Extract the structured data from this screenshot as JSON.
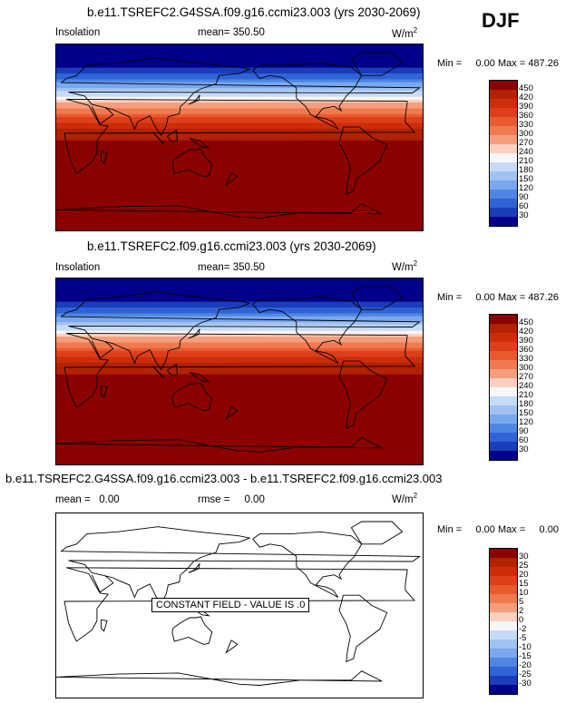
{
  "season": "DJF",
  "panels": [
    {
      "title": "b.e11.TSREFC2.G4SSA.f09.g16.ccmi23.003 (yrs 2030-2069)",
      "variable": "Insolation",
      "stat_label": "mean=",
      "stat_value": "350.50",
      "units": "W/m",
      "units_sup": "2",
      "min_label": "Min =",
      "min_value": "0.00",
      "max_label": "Max =",
      "max_value": "487.26"
    },
    {
      "title": "b.e11.TSREFC2.f09.g16.ccmi23.003 (yrs 2030-2069)",
      "variable": "Insolation",
      "stat_label": "mean=",
      "stat_value": "350.50",
      "units": "W/m",
      "units_sup": "2",
      "min_label": "Min =",
      "min_value": "0.00",
      "max_label": "Max =",
      "max_value": "487.26"
    },
    {
      "title": "b.e11.TSREFC2.G4SSA.f09.g16.ccmi23.003 - b.e11.TSREFC2.f09.g16.ccmi23.003",
      "variable": "mean =",
      "stat_label": "rmse =",
      "stat_value": "0.00",
      "variable_value": "0.00",
      "units": "W/m",
      "units_sup": "2",
      "min_label": "Min =",
      "min_value": "0.00",
      "max_label": "Max =",
      "max_value": "0.00",
      "annotation": "CONSTANT FIELD - VALUE IS .0"
    }
  ],
  "chart_data": [
    {
      "type": "heatmap",
      "title": "b.e11.TSREFC2.G4SSA.f09.g16.ccmi23.003 (yrs 2030-2069)",
      "variable": "Insolation",
      "units": "W/m2",
      "mean": 350.5,
      "min": 0.0,
      "max": 487.26,
      "colorbar_levels": [
        450,
        420,
        390,
        360,
        330,
        300,
        270,
        240,
        210,
        180,
        150,
        120,
        90,
        60,
        30
      ],
      "colorbar_colors": [
        "#8b0000",
        "#b22200",
        "#cc2d0a",
        "#dd3f1a",
        "#e95a2e",
        "#f07a4f",
        "#f59e7e",
        "#fbd0c0",
        "#f7f7f7",
        "#c6dbf7",
        "#a0c2f2",
        "#7aa8ee",
        "#4f86e3",
        "#2f63d6",
        "#1a3dbb",
        "#00008b"
      ],
      "latitude_profile": [
        {
          "lat": 90,
          "value": 0
        },
        {
          "lat": 80,
          "value": 0
        },
        {
          "lat": 70,
          "value": 15
        },
        {
          "lat": 60,
          "value": 70
        },
        {
          "lat": 50,
          "value": 140
        },
        {
          "lat": 40,
          "value": 215
        },
        {
          "lat": 30,
          "value": 290
        },
        {
          "lat": 20,
          "value": 355
        },
        {
          "lat": 10,
          "value": 410
        },
        {
          "lat": 0,
          "value": 445
        },
        {
          "lat": -10,
          "value": 470
        },
        {
          "lat": -20,
          "value": 485
        },
        {
          "lat": -30,
          "value": 480
        },
        {
          "lat": -40,
          "value": 470
        },
        {
          "lat": -50,
          "value": 460
        },
        {
          "lat": -60,
          "value": 460
        },
        {
          "lat": -70,
          "value": 470
        },
        {
          "lat": -80,
          "value": 480
        },
        {
          "lat": -90,
          "value": 487
        }
      ]
    },
    {
      "type": "heatmap",
      "title": "b.e11.TSREFC2.f09.g16.ccmi23.003 (yrs 2030-2069)",
      "variable": "Insolation",
      "units": "W/m2",
      "mean": 350.5,
      "min": 0.0,
      "max": 487.26,
      "colorbar_levels": [
        450,
        420,
        390,
        360,
        330,
        300,
        270,
        240,
        210,
        180,
        150,
        120,
        90,
        60,
        30
      ],
      "colorbar_colors": [
        "#8b0000",
        "#b22200",
        "#cc2d0a",
        "#dd3f1a",
        "#e95a2e",
        "#f07a4f",
        "#f59e7e",
        "#fbd0c0",
        "#f7f7f7",
        "#c6dbf7",
        "#a0c2f2",
        "#7aa8ee",
        "#4f86e3",
        "#2f63d6",
        "#1a3dbb",
        "#00008b"
      ],
      "latitude_profile": [
        {
          "lat": 90,
          "value": 0
        },
        {
          "lat": 80,
          "value": 0
        },
        {
          "lat": 70,
          "value": 15
        },
        {
          "lat": 60,
          "value": 70
        },
        {
          "lat": 50,
          "value": 140
        },
        {
          "lat": 40,
          "value": 215
        },
        {
          "lat": 30,
          "value": 290
        },
        {
          "lat": 20,
          "value": 355
        },
        {
          "lat": 10,
          "value": 410
        },
        {
          "lat": 0,
          "value": 445
        },
        {
          "lat": -10,
          "value": 470
        },
        {
          "lat": -20,
          "value": 485
        },
        {
          "lat": -30,
          "value": 480
        },
        {
          "lat": -40,
          "value": 470
        },
        {
          "lat": -50,
          "value": 460
        },
        {
          "lat": -60,
          "value": 460
        },
        {
          "lat": -70,
          "value": 470
        },
        {
          "lat": -80,
          "value": 480
        },
        {
          "lat": -90,
          "value": 487
        }
      ]
    },
    {
      "type": "heatmap",
      "title": "b.e11.TSREFC2.G4SSA.f09.g16.ccmi23.003 - b.e11.TSREFC2.f09.g16.ccmi23.003",
      "units": "W/m2",
      "mean": 0.0,
      "rmse": 0.0,
      "min": 0.0,
      "max": 0.0,
      "colorbar_levels": [
        30,
        25,
        20,
        15,
        10,
        5,
        2,
        0,
        -2,
        -5,
        -10,
        -15,
        -20,
        -25,
        -30
      ],
      "colorbar_colors": [
        "#8b0000",
        "#b22200",
        "#cc2d0a",
        "#dd3f1a",
        "#e95a2e",
        "#f07a4f",
        "#f59e7e",
        "#fbd0c0",
        "#f7f7f7",
        "#c6dbf7",
        "#a0c2f2",
        "#7aa8ee",
        "#4f86e3",
        "#2f63d6",
        "#1a3dbb",
        "#00008b"
      ],
      "field": "constant",
      "value": 0
    }
  ]
}
